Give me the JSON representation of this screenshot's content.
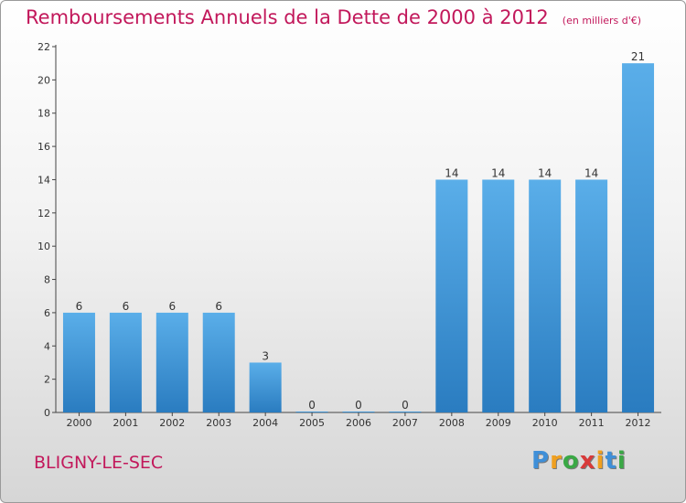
{
  "chart_data": {
    "type": "bar",
    "title": "Remboursements Annuels de la Dette de 2000 à 2012",
    "subtitle": "(en milliers d'€)",
    "categories": [
      "2000",
      "2001",
      "2002",
      "2003",
      "2004",
      "2005",
      "2006",
      "2007",
      "2008",
      "2009",
      "2010",
      "2011",
      "2012"
    ],
    "values": [
      6,
      6,
      6,
      6,
      3,
      0,
      0,
      0,
      14,
      14,
      14,
      14,
      21
    ],
    "ylim": [
      0,
      22
    ],
    "yticks": [
      0,
      2,
      4,
      6,
      8,
      10,
      12,
      14,
      16,
      18,
      20,
      22
    ],
    "xlabel": "",
    "ylabel": "",
    "grid": false,
    "bar_color": "#3d95d9",
    "bar_color_light": "#5aaee9",
    "bar_color_dark": "#2a7cc0"
  },
  "commune": "BLIGNY-LE-SEC",
  "brand": {
    "letters": [
      "P",
      "r",
      "o",
      "x",
      "i",
      "t",
      "i"
    ],
    "colors": [
      "#3f8fd8",
      "#f0a020",
      "#3aa845",
      "#d83a3a",
      "#f0a020",
      "#3f8fd8",
      "#3aa845"
    ]
  }
}
